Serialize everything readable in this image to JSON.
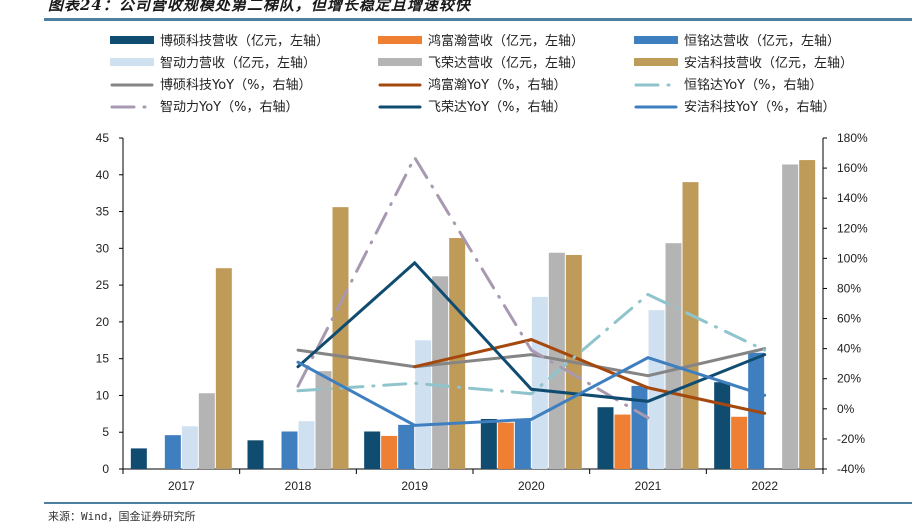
{
  "title": "图表24：公司营收规模处第二梯队，但增长稳定且增速较快",
  "source": "来源：Wind，国金证券研究所",
  "chart_data": {
    "type": "bar+line",
    "title": "图表24：公司营收规模处第二梯队，但增长稳定且增速较快",
    "categories": [
      "2017",
      "2018",
      "2019",
      "2020",
      "2021",
      "2022"
    ],
    "left_axis": {
      "label": "亿元",
      "ylim": [
        0,
        45
      ],
      "ticks": [
        "0",
        "5",
        "10",
        "15",
        "20",
        "25",
        "30",
        "35",
        "40",
        "45"
      ]
    },
    "right_axis": {
      "label": "%",
      "ylim": [
        -40,
        180
      ],
      "ticks": [
        "-40%",
        "-20%",
        "0%",
        "20%",
        "40%",
        "60%",
        "80%",
        "100%",
        "120%",
        "140%",
        "160%",
        "180%"
      ]
    },
    "grid": false,
    "legend_position": "top",
    "bar_series": [
      {
        "name": "博硕科技营收（亿元，左轴）",
        "color": "#0f4c70",
        "values": [
          2.8,
          3.9,
          5.1,
          6.8,
          8.4,
          11.8
        ]
      },
      {
        "name": "鸿富瀚营收（亿元，左轴）",
        "color": "#ee7f33",
        "values": [
          null,
          null,
          4.5,
          6.3,
          7.4,
          7.1
        ]
      },
      {
        "name": "恒铭达营收（亿元，左轴）",
        "color": "#3f7fc0",
        "values": [
          4.6,
          5.1,
          6.0,
          6.8,
          11.3,
          15.8
        ]
      },
      {
        "name": "智动力营收（亿元，左轴）",
        "color": "#cfe0f1",
        "values": [
          5.8,
          6.5,
          17.5,
          23.4,
          21.6,
          null
        ]
      },
      {
        "name": "飞荣达营收（亿元，左轴）",
        "color": "#b4b4b4",
        "values": [
          10.3,
          13.3,
          26.2,
          29.4,
          30.7,
          41.4
        ]
      },
      {
        "name": "安洁科技营收（亿元，左轴）",
        "color": "#bf9b5a",
        "values": [
          27.3,
          35.6,
          31.4,
          29.1,
          39.0,
          42.0
        ]
      }
    ],
    "line_series": [
      {
        "name": "博硕科技YoY（%，右轴）",
        "color": "#858585",
        "style": "solid",
        "values": [
          null,
          39,
          28,
          36,
          22,
          40
        ]
      },
      {
        "name": "鸿富瀚YoY（%，右轴）",
        "color": "#a5480e",
        "style": "solid",
        "values": [
          null,
          null,
          28,
          46,
          14,
          -3
        ]
      },
      {
        "name": "恒铭达YoY（%，右轴）",
        "color": "#8fc4cc",
        "style": "dashdot",
        "values": [
          null,
          12,
          17,
          10,
          76,
          39
        ]
      },
      {
        "name": "智动力YoY（%，右轴）",
        "color": "#a898b0",
        "style": "dashdot",
        "values": [
          null,
          15,
          167,
          39,
          -6,
          null
        ]
      },
      {
        "name": "飞荣达YoY（%，右轴）",
        "color": "#0f4c70",
        "style": "solid",
        "values": [
          null,
          28,
          97,
          13,
          5,
          36
        ]
      },
      {
        "name": "安洁科技YoY（%，右轴）",
        "color": "#3f7fc0",
        "style": "solid",
        "values": [
          null,
          31,
          -11,
          -7,
          34,
          9
        ]
      }
    ],
    "legend": [
      "博硕科技营收（亿元，左轴）",
      "鸿富瀚营收（亿元，左轴）",
      "恒铭达营收（亿元，左轴）",
      "智动力营收（亿元，左轴）",
      "飞荣达营收（亿元，左轴）",
      "安洁科技营收（亿元，左轴）",
      "博硕科技YoY（%，右轴）",
      "鸿富瀚YoY（%，右轴）",
      "恒铭达YoY（%，右轴）",
      "智动力YoY（%，右轴）",
      "飞荣达YoY（%，右轴）",
      "安洁科技YoY（%，右轴）"
    ]
  }
}
